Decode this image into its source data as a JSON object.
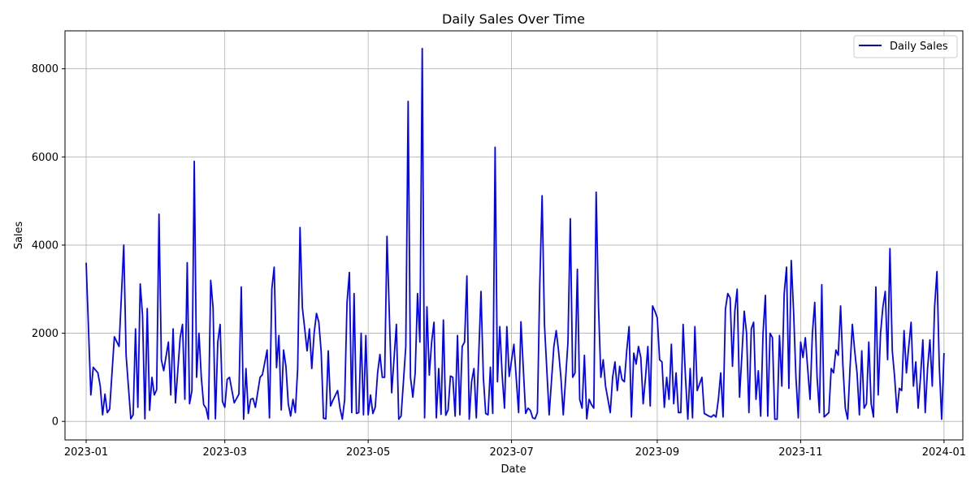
{
  "chart_data": {
    "type": "line",
    "title": "Daily Sales Over Time",
    "xlabel": "Date",
    "ylabel": "Sales",
    "xlim": [
      "2022-12-23",
      "2024-01-09"
    ],
    "ylim": [
      -420,
      8860
    ],
    "x_ticks": [
      {
        "date": "2023-01-01",
        "label": "2023-01"
      },
      {
        "date": "2023-03-01",
        "label": "2023-03"
      },
      {
        "date": "2023-05-01",
        "label": "2023-05"
      },
      {
        "date": "2023-07-01",
        "label": "2023-07"
      },
      {
        "date": "2023-09-01",
        "label": "2023-09"
      },
      {
        "date": "2023-11-01",
        "label": "2023-11"
      },
      {
        "date": "2024-01-01",
        "label": "2024-01"
      }
    ],
    "y_ticks": [
      0,
      2000,
      4000,
      6000,
      8000
    ],
    "grid": true,
    "legend": {
      "position": "top-right",
      "entries": [
        "Daily Sales"
      ]
    },
    "series": [
      {
        "name": "Daily Sales",
        "color": "#0000ff",
        "x": [
          "2023-01-01",
          "2023-01-03",
          "2023-01-04",
          "2023-01-06",
          "2023-01-07",
          "2023-01-08",
          "2023-01-09",
          "2023-01-10",
          "2023-01-11",
          "2023-01-13",
          "2023-01-15",
          "2023-01-17",
          "2023-01-18",
          "2023-01-20",
          "2023-01-21",
          "2023-01-22",
          "2023-01-23",
          "2023-01-24",
          "2023-01-25",
          "2023-01-26",
          "2023-01-27",
          "2023-01-28",
          "2023-01-29",
          "2023-01-30",
          "2023-01-31",
          "2023-02-01",
          "2023-02-02",
          "2023-02-03",
          "2023-02-05",
          "2023-02-06",
          "2023-02-07",
          "2023-02-08",
          "2023-02-10",
          "2023-02-11",
          "2023-02-12",
          "2023-02-13",
          "2023-02-14",
          "2023-02-15",
          "2023-02-16",
          "2023-02-17",
          "2023-02-18",
          "2023-02-19",
          "2023-02-20",
          "2023-02-21",
          "2023-02-22",
          "2023-02-23",
          "2023-02-24",
          "2023-02-25",
          "2023-02-26",
          "2023-02-27",
          "2023-02-28",
          "2023-03-01",
          "2023-03-02",
          "2023-03-03",
          "2023-03-05",
          "2023-03-07",
          "2023-03-08",
          "2023-03-09",
          "2023-03-10",
          "2023-03-11",
          "2023-03-12",
          "2023-03-13",
          "2023-03-14",
          "2023-03-16",
          "2023-03-17",
          "2023-03-19",
          "2023-03-20",
          "2023-03-21",
          "2023-03-22",
          "2023-03-23",
          "2023-03-24",
          "2023-03-25",
          "2023-03-26",
          "2023-03-27",
          "2023-03-28",
          "2023-03-29",
          "2023-03-30",
          "2023-03-31",
          "2023-04-01",
          "2023-04-02",
          "2023-04-03",
          "2023-04-04",
          "2023-04-05",
          "2023-04-06",
          "2023-04-07",
          "2023-04-08",
          "2023-04-09",
          "2023-04-10",
          "2023-04-11",
          "2023-04-12",
          "2023-04-13",
          "2023-04-14",
          "2023-04-15",
          "2023-04-16",
          "2023-04-18",
          "2023-04-19",
          "2023-04-20",
          "2023-04-21",
          "2023-04-22",
          "2023-04-23",
          "2023-04-24",
          "2023-04-25",
          "2023-04-26",
          "2023-04-27",
          "2023-04-28",
          "2023-04-29",
          "2023-04-30",
          "2023-05-01",
          "2023-05-02",
          "2023-05-03",
          "2023-05-04",
          "2023-05-05",
          "2023-05-06",
          "2023-05-07",
          "2023-05-08",
          "2023-05-09",
          "2023-05-11",
          "2023-05-13",
          "2023-05-14",
          "2023-05-15",
          "2023-05-16",
          "2023-05-17",
          "2023-05-18",
          "2023-05-19",
          "2023-05-20",
          "2023-05-21",
          "2023-05-22",
          "2023-05-23",
          "2023-05-24",
          "2023-05-25",
          "2023-05-26",
          "2023-05-27",
          "2023-05-28",
          "2023-05-29",
          "2023-05-30",
          "2023-05-31",
          "2023-06-01",
          "2023-06-02",
          "2023-06-03",
          "2023-06-04",
          "2023-06-05",
          "2023-06-06",
          "2023-06-07",
          "2023-06-08",
          "2023-06-09",
          "2023-06-10",
          "2023-06-11",
          "2023-06-12",
          "2023-06-13",
          "2023-06-14",
          "2023-06-15",
          "2023-06-16",
          "2023-06-17",
          "2023-06-18",
          "2023-06-19",
          "2023-06-20",
          "2023-06-21",
          "2023-06-22",
          "2023-06-23",
          "2023-06-24",
          "2023-06-25",
          "2023-06-26",
          "2023-06-27",
          "2023-06-28",
          "2023-06-29",
          "2023-06-30",
          "2023-07-02",
          "2023-07-04",
          "2023-07-05",
          "2023-07-06",
          "2023-07-07",
          "2023-07-08",
          "2023-07-09",
          "2023-07-10",
          "2023-07-11",
          "2023-07-12",
          "2023-07-13",
          "2023-07-14",
          "2023-07-15",
          "2023-07-17",
          "2023-07-19",
          "2023-07-20",
          "2023-07-21",
          "2023-07-22",
          "2023-07-23",
          "2023-07-25",
          "2023-07-26",
          "2023-07-27",
          "2023-07-28",
          "2023-07-29",
          "2023-07-30",
          "2023-07-31",
          "2023-08-01",
          "2023-08-02",
          "2023-08-03",
          "2023-08-04",
          "2023-08-05",
          "2023-08-06",
          "2023-08-07",
          "2023-08-08",
          "2023-08-09",
          "2023-08-10",
          "2023-08-12",
          "2023-08-13",
          "2023-08-14",
          "2023-08-15",
          "2023-08-16",
          "2023-08-17",
          "2023-08-18",
          "2023-08-19",
          "2023-08-20",
          "2023-08-21",
          "2023-08-22",
          "2023-08-23",
          "2023-08-24",
          "2023-08-25",
          "2023-08-26",
          "2023-08-27",
          "2023-08-28",
          "2023-08-29",
          "2023-08-30",
          "2023-08-31",
          "2023-09-01",
          "2023-09-02",
          "2023-09-03",
          "2023-09-04",
          "2023-09-05",
          "2023-09-06",
          "2023-09-07",
          "2023-09-08",
          "2023-09-09",
          "2023-09-10",
          "2023-09-11",
          "2023-09-12",
          "2023-09-13",
          "2023-09-14",
          "2023-09-15",
          "2023-09-16",
          "2023-09-17",
          "2023-09-18",
          "2023-09-20",
          "2023-09-21",
          "2023-09-22",
          "2023-09-23",
          "2023-09-24",
          "2023-09-25",
          "2023-09-26",
          "2023-09-27",
          "2023-09-28",
          "2023-09-29",
          "2023-09-30",
          "2023-10-01",
          "2023-10-02",
          "2023-10-03",
          "2023-10-04",
          "2023-10-05",
          "2023-10-06",
          "2023-10-07",
          "2023-10-08",
          "2023-10-09",
          "2023-10-10",
          "2023-10-11",
          "2023-10-12",
          "2023-10-13",
          "2023-10-14",
          "2023-10-15",
          "2023-10-16",
          "2023-10-17",
          "2023-10-18",
          "2023-10-19",
          "2023-10-20",
          "2023-10-21",
          "2023-10-22",
          "2023-10-23",
          "2023-10-24",
          "2023-10-25",
          "2023-10-26",
          "2023-10-27",
          "2023-10-28",
          "2023-10-29",
          "2023-10-30",
          "2023-10-31",
          "2023-11-01",
          "2023-11-02",
          "2023-11-03",
          "2023-11-04",
          "2023-11-05",
          "2023-11-06",
          "2023-11-07",
          "2023-11-08",
          "2023-11-09",
          "2023-11-10",
          "2023-11-11",
          "2023-11-12",
          "2023-11-13",
          "2023-11-14",
          "2023-11-15",
          "2023-11-16",
          "2023-11-17",
          "2023-11-18",
          "2023-11-19",
          "2023-11-20",
          "2023-11-21",
          "2023-11-22",
          "2023-11-23",
          "2023-11-24",
          "2023-11-25",
          "2023-11-26",
          "2023-11-27",
          "2023-11-28",
          "2023-11-29",
          "2023-11-30",
          "2023-12-01",
          "2023-12-02",
          "2023-12-03",
          "2023-12-04",
          "2023-12-05",
          "2023-12-06",
          "2023-12-07",
          "2023-12-08",
          "2023-12-09",
          "2023-12-10",
          "2023-12-11",
          "2023-12-12",
          "2023-12-13",
          "2023-12-14",
          "2023-12-15",
          "2023-12-16",
          "2023-12-17",
          "2023-12-18",
          "2023-12-19",
          "2023-12-20",
          "2023-12-21",
          "2023-12-22",
          "2023-12-23",
          "2023-12-24",
          "2023-12-25",
          "2023-12-26",
          "2023-12-27",
          "2023-12-28",
          "2023-12-29",
          "2023-12-30",
          "2023-12-31",
          "2024-01-01"
        ],
        "values": [
          3600,
          600,
          1230,
          1100,
          800,
          150,
          620,
          200,
          280,
          1920,
          1700,
          4000,
          1500,
          60,
          150,
          2100,
          320,
          3120,
          2400,
          60,
          2560,
          250,
          1000,
          600,
          720,
          4700,
          1400,
          1150,
          1800,
          600,
          2100,
          420,
          1900,
          2200,
          500,
          3600,
          400,
          700,
          5900,
          1000,
          2000,
          1000,
          380,
          300,
          50,
          3200,
          2580,
          60,
          1800,
          2200,
          450,
          320,
          950,
          1000,
          420,
          620,
          3050,
          50,
          1200,
          180,
          500,
          520,
          320,
          1000,
          1060,
          1620,
          80,
          3000,
          3500,
          1220,
          1950,
          260,
          1620,
          1250,
          400,
          120,
          500,
          200,
          1200,
          4400,
          2580,
          2100,
          1600,
          2100,
          1200,
          2000,
          2450,
          2250,
          1580,
          70,
          60,
          1600,
          350,
          480,
          700,
          300,
          50,
          500,
          2700,
          3380,
          200,
          2900,
          180,
          200,
          2000,
          150,
          1950,
          150,
          600,
          180,
          320,
          1100,
          1520,
          1000,
          1000,
          4200,
          650,
          2200,
          50,
          120,
          900,
          1700,
          7260,
          1000,
          550,
          1100,
          2900,
          1800,
          8460,
          80,
          2600,
          1050,
          1800,
          2250,
          80,
          1200,
          160,
          2300,
          140,
          260,
          1030,
          1000,
          120,
          1950,
          150,
          1700,
          1800,
          3300,
          50,
          900,
          1200,
          80,
          1450,
          2950,
          1000,
          180,
          150,
          1230,
          180,
          6220,
          900,
          2150,
          1050,
          300,
          2150,
          1020,
          1750,
          200,
          2260,
          1200,
          180,
          300,
          250,
          80,
          60,
          200,
          3100,
          5120,
          2200,
          150,
          1700,
          2060,
          1600,
          1000,
          150,
          1800,
          4600,
          1000,
          1100,
          3450,
          500,
          300,
          1500,
          60,
          500,
          380,
          300,
          5200,
          2600,
          1000,
          1400,
          800,
          200,
          1000,
          1350,
          700,
          1250,
          950,
          900,
          1600,
          2150,
          100,
          1550,
          1300,
          1700,
          1450,
          400,
          1000,
          1700,
          350,
          2620,
          2500,
          2350,
          1400,
          1350,
          320,
          1000,
          500,
          1750,
          400,
          1100,
          200,
          200,
          2200,
          1000,
          50,
          1200,
          80,
          2150,
          700,
          1000,
          180,
          150,
          120,
          100,
          150,
          100,
          500,
          1100,
          100,
          2550,
          2900,
          2800,
          1250,
          2500,
          3000,
          550,
          1500,
          2500,
          2000,
          200,
          2100,
          2250,
          500,
          1150,
          120,
          2000,
          2860,
          120,
          2000,
          1900,
          50,
          50,
          1950,
          800,
          2900,
          3500,
          750,
          3650,
          2500,
          1000,
          80,
          1800,
          1450,
          1900,
          1200,
          500,
          2000,
          2700,
          1000,
          200,
          3100,
          100,
          150,
          200,
          1200,
          1100,
          1620,
          1500,
          2620,
          1250,
          300,
          50,
          1200,
          2200,
          1600,
          1100,
          150,
          1600,
          300,
          400,
          1800,
          400,
          100,
          3050,
          600,
          2000,
          2600,
          2950,
          1400,
          3920,
          1600,
          1000,
          200,
          750,
          700,
          2060,
          1100,
          1700,
          2250,
          800,
          1350,
          300,
          1000,
          1850,
          200,
          1200,
          1850,
          800,
          2600,
          3400,
          1250,
          50,
          1550
        ]
      }
    ]
  }
}
